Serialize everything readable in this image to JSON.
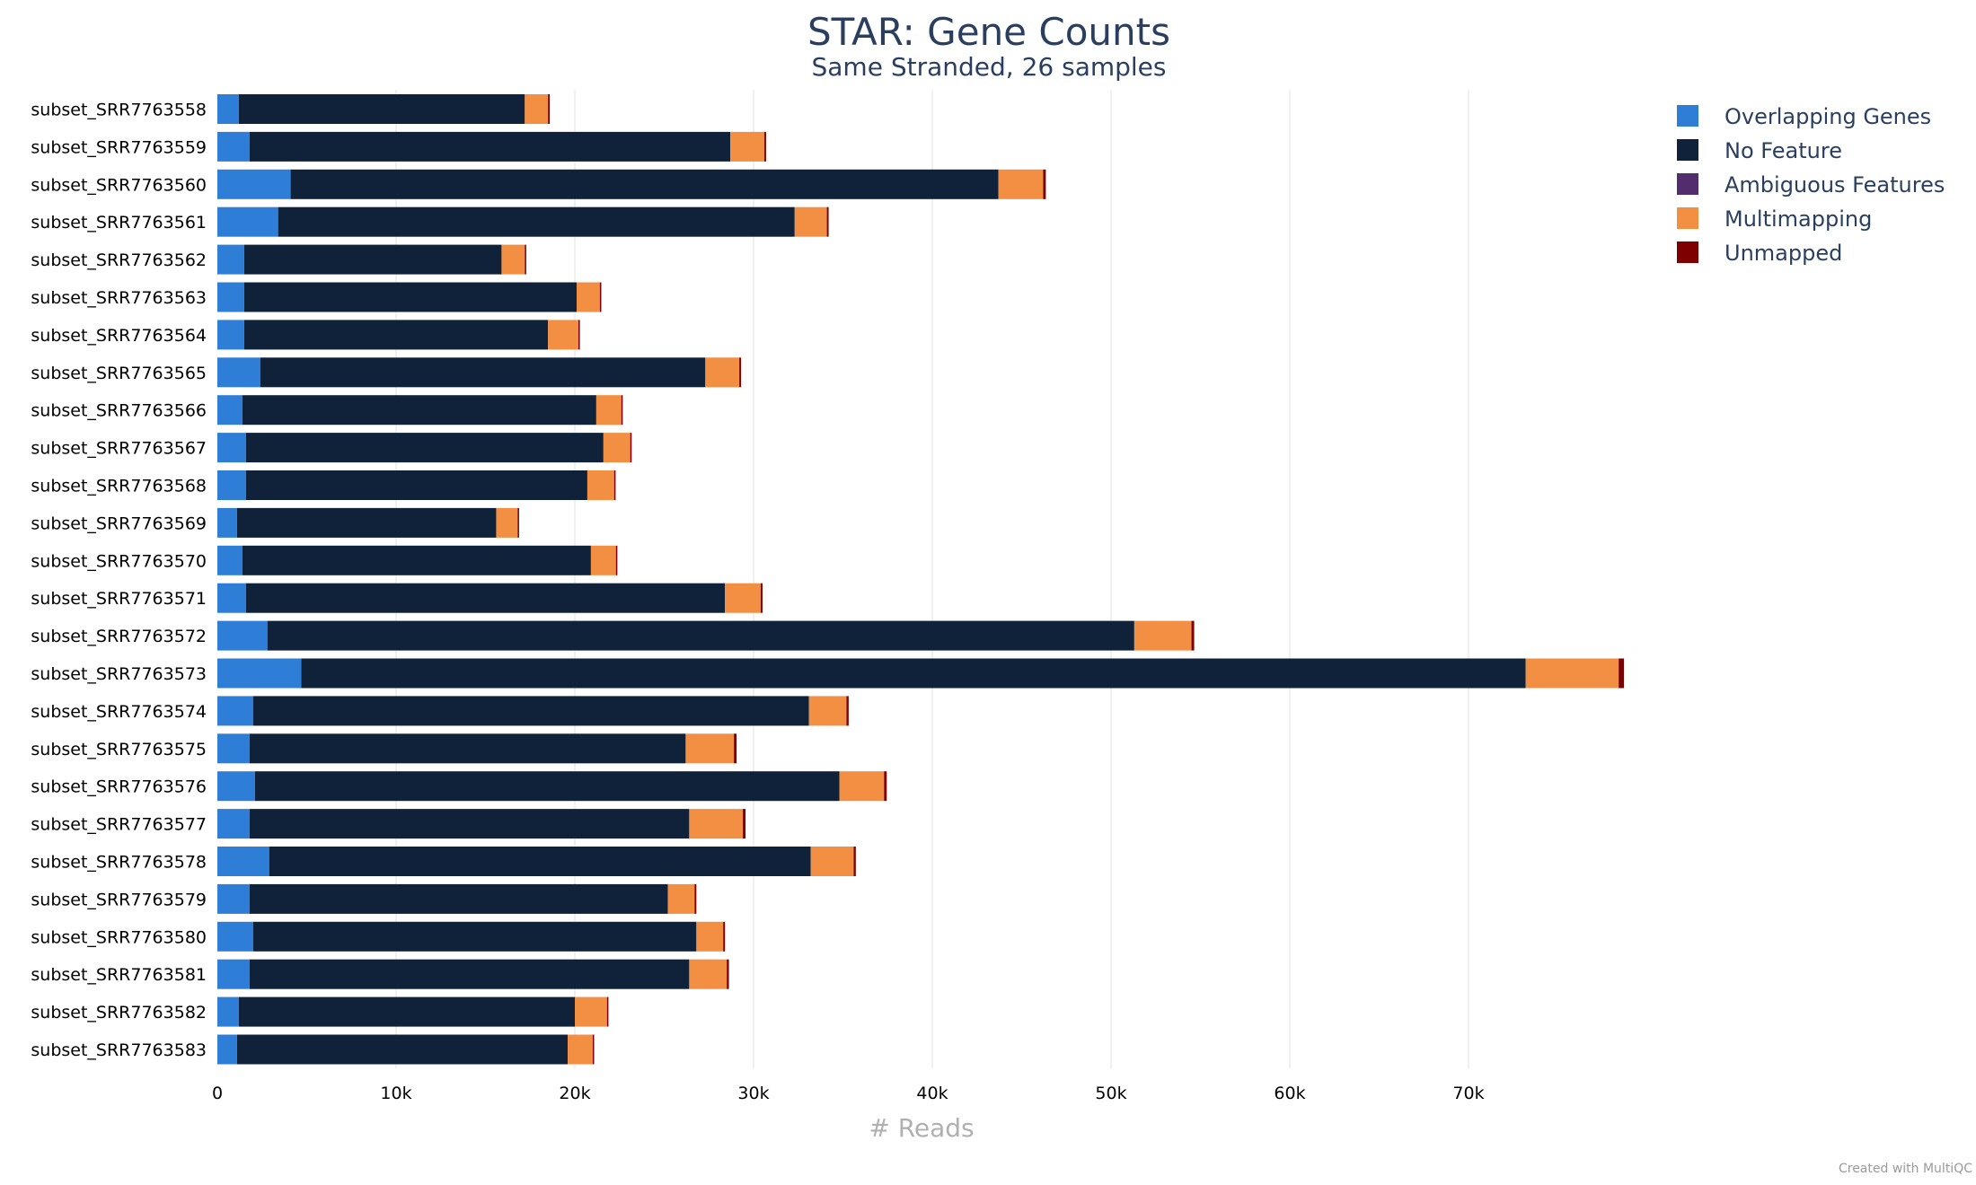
{
  "chart_data": {
    "type": "bar",
    "orientation": "horizontal",
    "stacked": true,
    "title": "STAR: Gene Counts",
    "subtitle": "Same Stranded, 26 samples",
    "xlabel": "# Reads",
    "ylabel": "",
    "xlim": [
      0,
      80000
    ],
    "xticks": [
      {
        "value": 0,
        "label": "0"
      },
      {
        "value": 10000,
        "label": "10k"
      },
      {
        "value": 20000,
        "label": "20k"
      },
      {
        "value": 30000,
        "label": "30k"
      },
      {
        "value": 40000,
        "label": "40k"
      },
      {
        "value": 50000,
        "label": "50k"
      },
      {
        "value": 60000,
        "label": "60k"
      },
      {
        "value": 70000,
        "label": "70k"
      }
    ],
    "grid": true,
    "legend_position": "top-right",
    "categories": [
      "subset_SRR7763558",
      "subset_SRR7763559",
      "subset_SRR7763560",
      "subset_SRR7763561",
      "subset_SRR7763562",
      "subset_SRR7763563",
      "subset_SRR7763564",
      "subset_SRR7763565",
      "subset_SRR7763566",
      "subset_SRR7763567",
      "subset_SRR7763568",
      "subset_SRR7763569",
      "subset_SRR7763570",
      "subset_SRR7763571",
      "subset_SRR7763572",
      "subset_SRR7763573",
      "subset_SRR7763574",
      "subset_SRR7763575",
      "subset_SRR7763576",
      "subset_SRR7763577",
      "subset_SRR7763578",
      "subset_SRR7763579",
      "subset_SRR7763580",
      "subset_SRR7763581",
      "subset_SRR7763582",
      "subset_SRR7763583"
    ],
    "series": [
      {
        "name": "Overlapping Genes",
        "color": "#2e7ed8",
        "values": [
          1200,
          1800,
          4100,
          3400,
          1500,
          1500,
          1500,
          2400,
          1400,
          1600,
          1600,
          1100,
          1400,
          1600,
          2800,
          4700,
          2000,
          1800,
          2100,
          1800,
          2900,
          1800,
          2000,
          1800,
          1200,
          1100
        ]
      },
      {
        "name": "No Feature",
        "color": "#0f2239",
        "values": [
          16000,
          26900,
          39600,
          28900,
          14400,
          18600,
          17000,
          24900,
          19800,
          20000,
          19100,
          14500,
          19500,
          26800,
          48500,
          68500,
          31100,
          24400,
          32700,
          24600,
          30300,
          23400,
          24800,
          24600,
          18800,
          18500
        ]
      },
      {
        "name": "Ambiguous Features",
        "color": "#512d6d",
        "values": [
          0,
          0,
          0,
          0,
          0,
          0,
          0,
          0,
          0,
          0,
          0,
          0,
          0,
          0,
          0,
          0,
          0,
          0,
          0,
          0,
          0,
          0,
          0,
          0,
          0,
          0
        ]
      },
      {
        "name": "Multimapping",
        "color": "#f28f43",
        "values": [
          1300,
          1900,
          2500,
          1800,
          1300,
          1300,
          1700,
          1900,
          1400,
          1500,
          1500,
          1200,
          1400,
          2000,
          3200,
          5200,
          2100,
          2700,
          2500,
          3000,
          2400,
          1500,
          1500,
          2100,
          1800,
          1400
        ]
      },
      {
        "name": "Unmapped",
        "color": "#7f0000",
        "values": [
          100,
          100,
          150,
          100,
          80,
          80,
          80,
          100,
          80,
          80,
          80,
          80,
          80,
          100,
          150,
          300,
          120,
          150,
          150,
          150,
          120,
          100,
          100,
          120,
          80,
          80
        ]
      }
    ]
  },
  "footer": {
    "credit": "Created with MultiQC"
  }
}
